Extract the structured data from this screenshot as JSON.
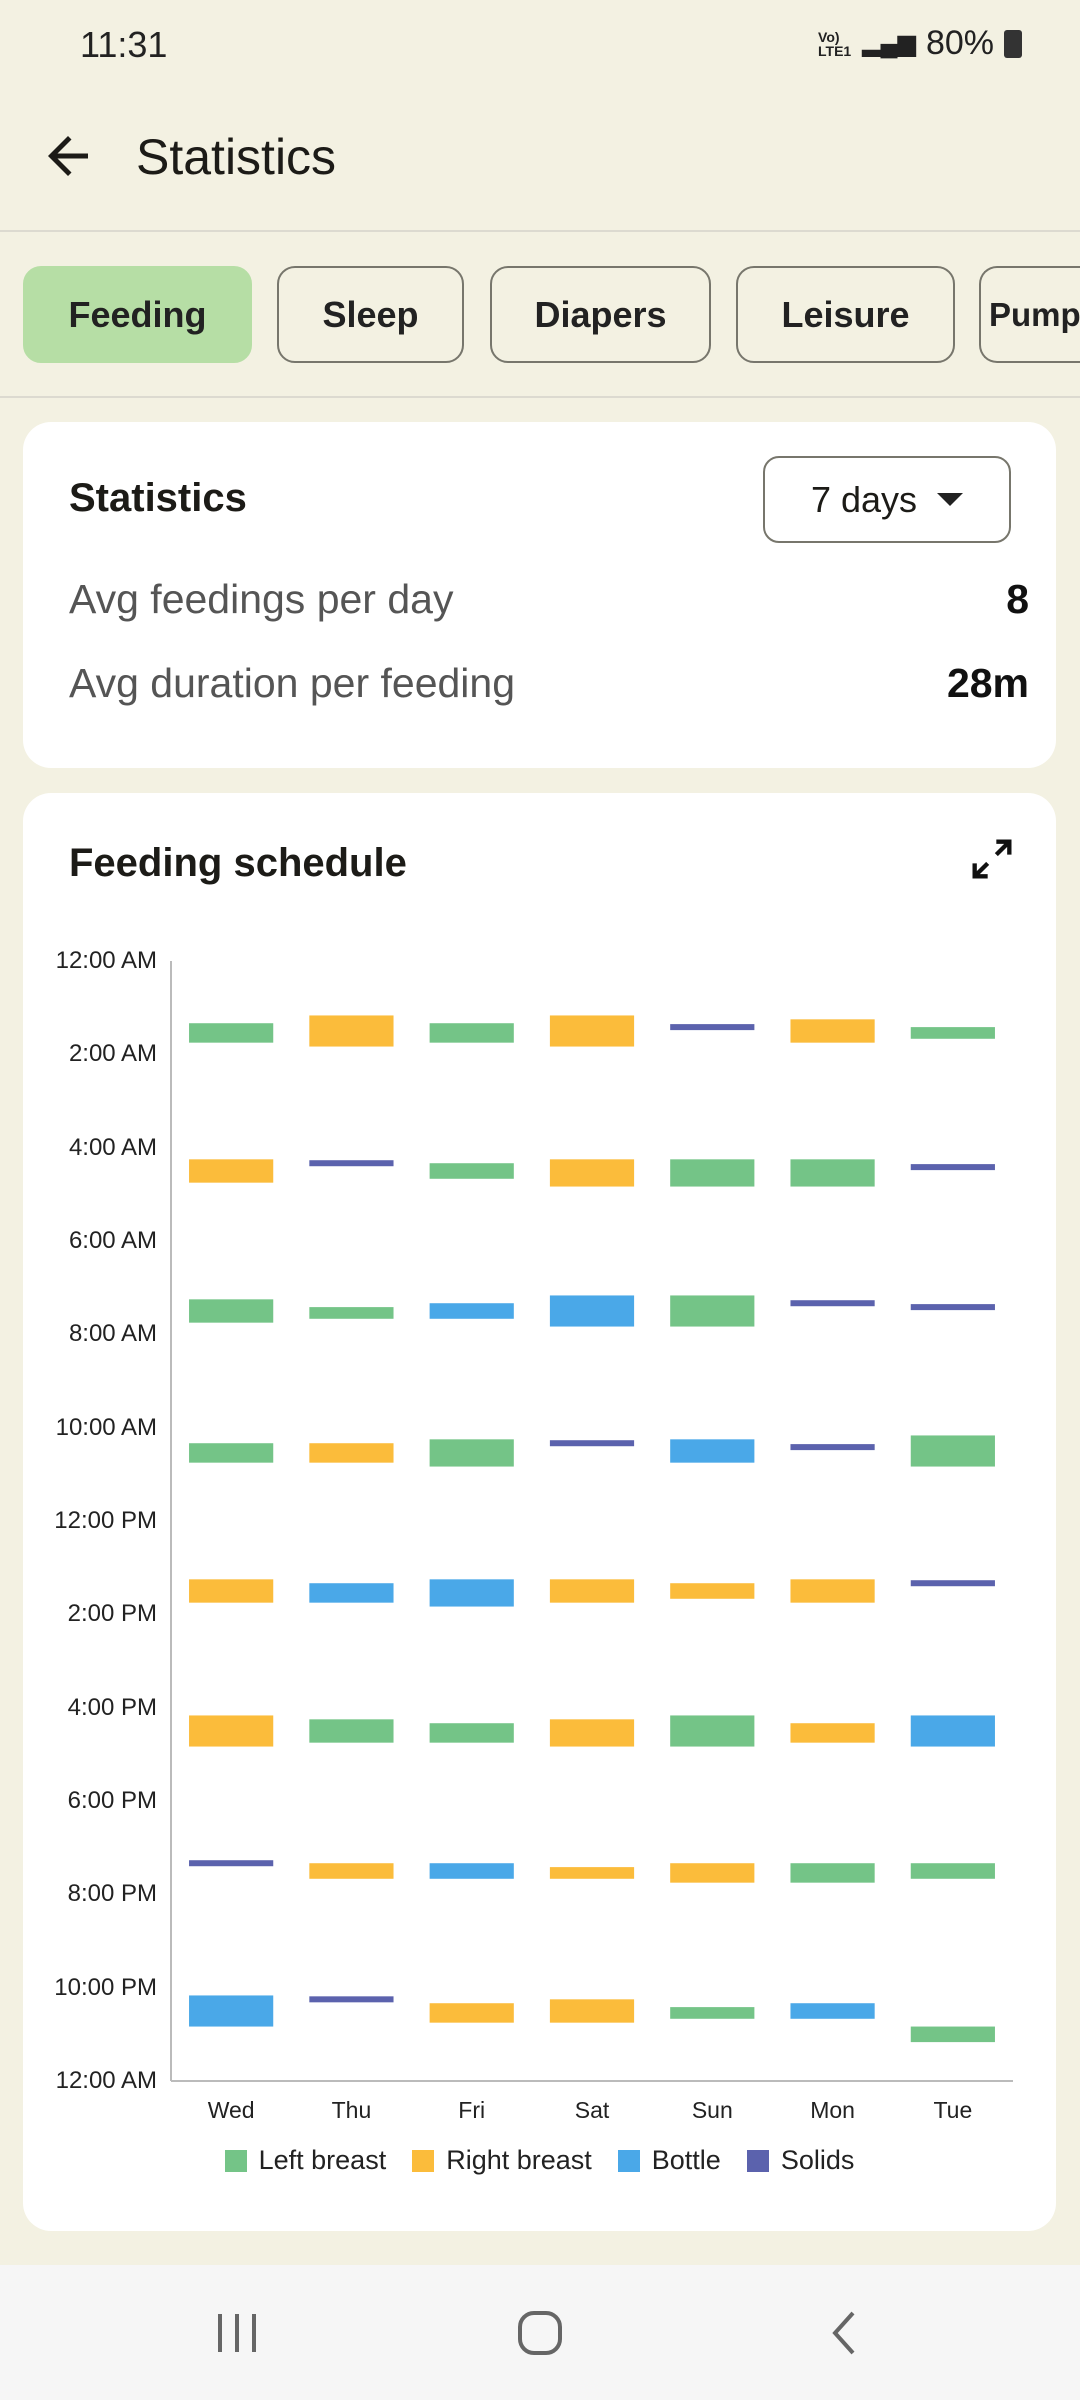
{
  "status_bar": {
    "time": "11:31",
    "network": "Vo) LTE1",
    "battery": "80%"
  },
  "header": {
    "title": "Statistics",
    "back_icon": "arrow-left-icon"
  },
  "tabs": [
    {
      "label": "Feeding",
      "active": true
    },
    {
      "label": "Sleep"
    },
    {
      "label": "Diapers"
    },
    {
      "label": "Leisure"
    },
    {
      "label": "Pump"
    }
  ],
  "stats_card": {
    "title": "Statistics",
    "range": "7 days",
    "rows": [
      {
        "label": "Avg feedings per day",
        "value": "8"
      },
      {
        "label": "Avg duration per feeding",
        "value": "28m"
      }
    ]
  },
  "schedule_card": {
    "title": "Feeding schedule",
    "expand_icon": "expand-icon"
  },
  "colors": {
    "Left breast": "#74c487",
    "Right breast": "#fbbc3b",
    "Bottle": "#4aa8e8",
    "Solids": "#5b62ad",
    "accent": "#b6dea5"
  },
  "chart_data": {
    "type": "bar",
    "categories": [
      "Wed",
      "Thu",
      "Fri",
      "Sat",
      "Sun",
      "Mon",
      "Tue"
    ],
    "y_ticks": [
      "12:00 AM",
      "2:00 AM",
      "4:00 AM",
      "6:00 AM",
      "8:00 AM",
      "10:00 AM",
      "12:00 PM",
      "2:00 PM",
      "4:00 PM",
      "6:00 PM",
      "8:00 PM",
      "10:00 PM",
      "12:00 AM"
    ],
    "ylim": [
      "12:00 AM",
      "12:00 AM (next day)"
    ],
    "legend": [
      "Left breast",
      "Right breast",
      "Bottle",
      "Solids"
    ],
    "legend_position": "bottom",
    "events": {
      "Wed": [
        [
          "Left breast",
          "1:20 AM",
          "1:45 AM"
        ],
        [
          "Right breast",
          "4:15 AM",
          "4:45 AM"
        ],
        [
          "Left breast",
          "7:15 AM",
          "7:45 AM"
        ],
        [
          "Left breast",
          "10:20 AM",
          "10:45 AM"
        ],
        [
          "Right breast",
          "1:15 PM",
          "1:45 PM"
        ],
        [
          "Right breast",
          "4:10 PM",
          "4:50 PM"
        ],
        [
          "Solids",
          "7:20 PM"
        ],
        [
          "Bottle",
          "10:10 PM",
          "10:50 PM"
        ]
      ],
      "Thu": [
        [
          "Right breast",
          "1:10 AM",
          "1:50 AM"
        ],
        [
          "Solids",
          "4:20 AM"
        ],
        [
          "Left breast",
          "7:25 AM",
          "7:40 AM"
        ],
        [
          "Right breast",
          "10:20 AM",
          "10:45 AM"
        ],
        [
          "Bottle",
          "1:20 PM",
          "1:45 PM"
        ],
        [
          "Left breast",
          "4:15 PM",
          "4:45 PM"
        ],
        [
          "Right breast",
          "7:20 PM",
          "7:40 PM"
        ],
        [
          "Solids",
          "10:15 PM"
        ]
      ],
      "Fri": [
        [
          "Left breast",
          "1:20 AM",
          "1:45 AM"
        ],
        [
          "Left breast",
          "4:20 AM",
          "4:40 AM"
        ],
        [
          "Bottle",
          "7:20 AM",
          "7:40 AM"
        ],
        [
          "Left breast",
          "10:15 AM",
          "10:50 AM"
        ],
        [
          "Bottle",
          "1:15 PM",
          "1:50 PM"
        ],
        [
          "Left breast",
          "4:20 PM",
          "4:45 PM"
        ],
        [
          "Bottle",
          "7:20 PM",
          "7:40 PM"
        ],
        [
          "Right breast",
          "10:20 PM",
          "10:45 PM"
        ]
      ],
      "Sat": [
        [
          "Right breast",
          "1:10 AM",
          "1:50 AM"
        ],
        [
          "Right breast",
          "4:15 AM",
          "4:50 AM"
        ],
        [
          "Bottle",
          "7:10 AM",
          "7:50 AM"
        ],
        [
          "Solids",
          "10:20 AM"
        ],
        [
          "Right breast",
          "1:15 PM",
          "1:45 PM"
        ],
        [
          "Right breast",
          "4:15 PM",
          "4:50 PM"
        ],
        [
          "Right breast",
          "7:25 PM",
          "7:40 PM"
        ],
        [
          "Right breast",
          "10:15 PM",
          "10:45 PM"
        ]
      ],
      "Sun": [
        [
          "Solids",
          "1:25 AM"
        ],
        [
          "Left breast",
          "4:15 AM",
          "4:50 AM"
        ],
        [
          "Left breast",
          "7:10 AM",
          "7:50 AM"
        ],
        [
          "Bottle",
          "10:15 AM",
          "10:45 AM"
        ],
        [
          "Right breast",
          "1:20 PM",
          "1:40 PM"
        ],
        [
          "Left breast",
          "4:10 PM",
          "4:50 PM"
        ],
        [
          "Right breast",
          "7:20 PM",
          "7:45 PM"
        ],
        [
          "Left breast",
          "10:25 PM",
          "10:40 PM"
        ]
      ],
      "Mon": [
        [
          "Right breast",
          "1:15 AM",
          "1:45 AM"
        ],
        [
          "Left breast",
          "4:15 AM",
          "4:50 AM"
        ],
        [
          "Solids",
          "7:20 AM"
        ],
        [
          "Solids",
          "10:25 AM"
        ],
        [
          "Right breast",
          "1:15 PM",
          "1:45 PM"
        ],
        [
          "Right breast",
          "4:20 PM",
          "4:45 PM"
        ],
        [
          "Left breast",
          "7:20 PM",
          "7:45 PM"
        ],
        [
          "Bottle",
          "10:20 PM",
          "10:40 PM"
        ]
      ],
      "Tue": [
        [
          "Left breast",
          "1:25 AM",
          "1:40 AM"
        ],
        [
          "Solids",
          "4:25 AM"
        ],
        [
          "Solids",
          "7:25 AM"
        ],
        [
          "Left breast",
          "10:10 AM",
          "10:50 AM"
        ],
        [
          "Solids",
          "1:20 PM"
        ],
        [
          "Bottle",
          "4:10 PM",
          "4:50 PM"
        ],
        [
          "Left breast",
          "7:20 PM",
          "7:40 PM"
        ],
        [
          "Left breast",
          "10:50 PM",
          "11:10 PM"
        ]
      ]
    }
  },
  "nav_bar": {
    "icons": [
      "recent-apps-icon",
      "home-icon",
      "back-icon"
    ]
  }
}
